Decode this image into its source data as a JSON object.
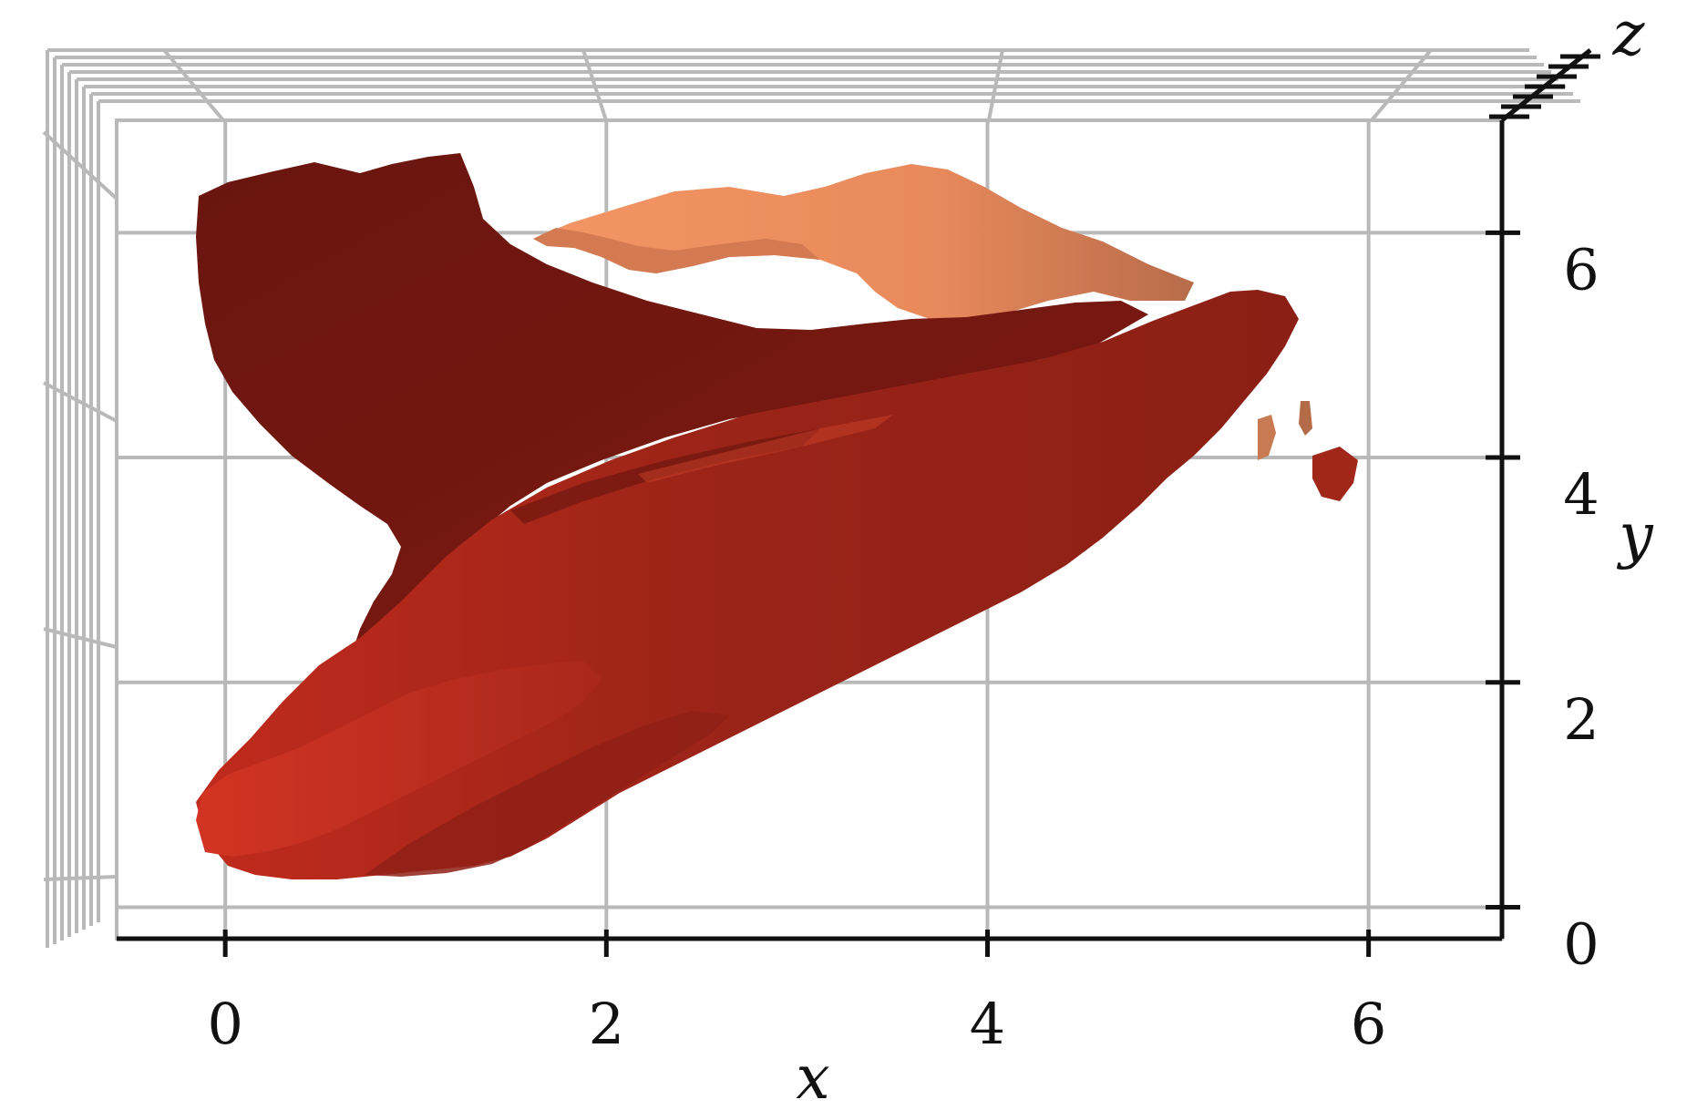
{
  "chart_data": {
    "type": "surface-3d",
    "title": "",
    "xlabel": "x",
    "ylabel": "y",
    "zlabel": "z",
    "xticks": [
      0,
      2,
      4,
      6
    ],
    "yticks": [
      0,
      2,
      4,
      6
    ],
    "xlim": [
      -0.57,
      6.7
    ],
    "ylim": [
      -0.28,
      7.0
    ],
    "grid": true,
    "colors": {
      "grid": "#b9b9b9",
      "axis": "#111111",
      "surface_dark": "#6d1610",
      "surface_mid": "#9a2318",
      "surface_bright": "#c92f20",
      "surface_light": "#f08a5c"
    }
  }
}
